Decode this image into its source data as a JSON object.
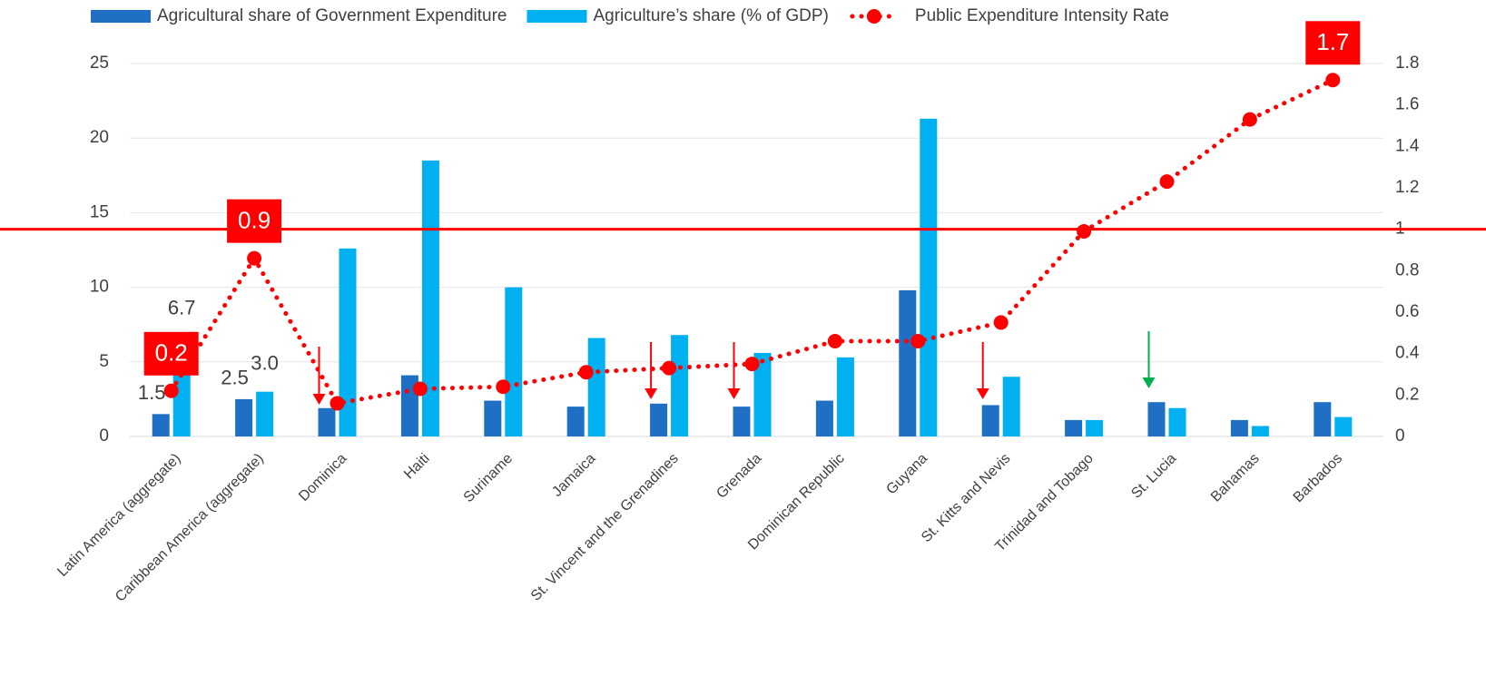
{
  "chart_data": {
    "type": "bar_line",
    "categories": [
      "Latin America (aggregate)",
      "Caribbean America (aggregate)",
      "Dominica",
      "Haiti",
      "Suriname",
      "Jamaica",
      "St. Vincent and the Grenadines",
      "Grenada",
      "Dominican Republic",
      "Guyana",
      "St. Kitts and Nevis",
      "Trinidad and Tobago",
      "St. Lucia",
      "Bahamas",
      "Barbados"
    ],
    "series": [
      {
        "name": "Agricultural share of Government Expenditure",
        "type": "bar",
        "color": "#1f6fc5",
        "values": [
          1.5,
          2.5,
          1.9,
          4.1,
          2.4,
          2.0,
          2.2,
          2.0,
          2.4,
          9.8,
          2.1,
          1.1,
          2.3,
          1.1,
          2.3
        ],
        "value_labels": [
          "1.5",
          "2.5",
          null,
          null,
          null,
          null,
          null,
          null,
          null,
          null,
          null,
          null,
          null,
          null,
          null
        ]
      },
      {
        "name": "Agriculture’s share (% of GDP)",
        "type": "bar",
        "color": "#00b0f0",
        "values": [
          6.7,
          3.0,
          12.6,
          18.5,
          10.0,
          6.6,
          6.8,
          5.6,
          5.3,
          21.3,
          4.0,
          1.1,
          1.9,
          0.7,
          1.3
        ],
        "value_labels": [
          "6.7",
          "3.0",
          null,
          null,
          null,
          null,
          null,
          null,
          null,
          null,
          null,
          null,
          null,
          null,
          null
        ]
      },
      {
        "name": "Public Expenditure Intensity Rate",
        "type": "line",
        "axis": "y2",
        "color": "#ff0000",
        "values": [
          0.22,
          0.86,
          0.16,
          0.23,
          0.24,
          0.31,
          0.33,
          0.35,
          0.46,
          0.46,
          0.55,
          0.99,
          1.23,
          1.53,
          1.72
        ],
        "value_labels": [
          "0.2",
          "0.9",
          null,
          null,
          null,
          null,
          null,
          null,
          null,
          null,
          null,
          null,
          null,
          null,
          "1.7"
        ]
      }
    ],
    "ylim": [
      0,
      25
    ],
    "yticks": [
      0,
      5,
      10,
      15,
      20,
      25
    ],
    "y2lim": [
      0,
      1.8
    ],
    "y2ticks": [
      0,
      0.2,
      0.4,
      0.6,
      0.8,
      1,
      1.2,
      1.4,
      1.6,
      1.8
    ],
    "reference_line": {
      "axis": "y2",
      "value": 1,
      "color": "#ff0000"
    },
    "grid": true,
    "legend": "top"
  }
}
